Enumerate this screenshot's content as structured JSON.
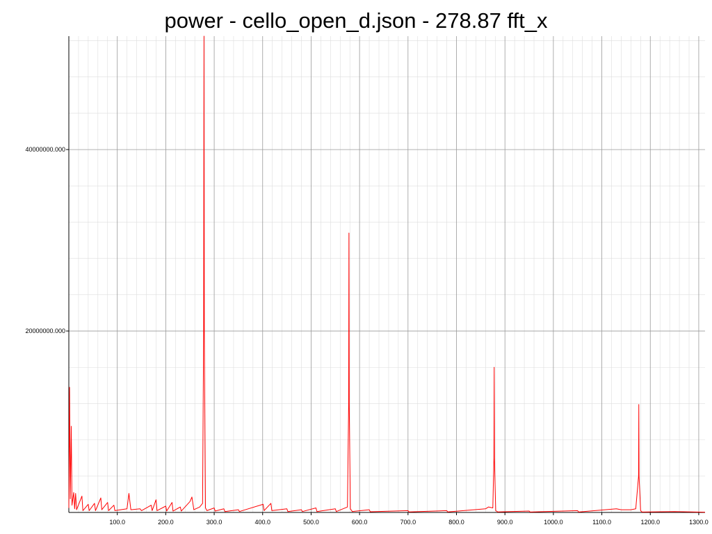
{
  "chart_data": {
    "type": "line",
    "title": "power - cello_open_d.json - 278.87 fft_x",
    "xlabel": "",
    "ylabel": "",
    "xlim": [
      0,
      1313
    ],
    "ylim": [
      0,
      52500000
    ],
    "grid": true,
    "colors": {
      "line": "#ff0000",
      "major_grid": "#9a9a9a",
      "minor_grid": "#dddddd",
      "axis": "#000000"
    },
    "x_ticks": [
      {
        "value": 100,
        "label": "100.0"
      },
      {
        "value": 200,
        "label": "200.0"
      },
      {
        "value": 300,
        "label": "300.0"
      },
      {
        "value": 400,
        "label": "400.0"
      },
      {
        "value": 500,
        "label": "500.0"
      },
      {
        "value": 600,
        "label": "600.0"
      },
      {
        "value": 700,
        "label": "700.0"
      },
      {
        "value": 800,
        "label": "800.0"
      },
      {
        "value": 900,
        "label": "900.0"
      },
      {
        "value": 1000,
        "label": "1000.0"
      },
      {
        "value": 1100,
        "label": "1100.0"
      },
      {
        "value": 1200,
        "label": "1200.0"
      },
      {
        "value": 1300,
        "label": "1300.0"
      }
    ],
    "y_ticks": [
      {
        "value": 20000000,
        "label": "20000000.000"
      },
      {
        "value": 40000000,
        "label": "40000000.000"
      }
    ],
    "series": [
      {
        "points": [
          [
            0,
            500000
          ],
          [
            1.5,
            13800000
          ],
          [
            3,
            1500000
          ],
          [
            5,
            9500000
          ],
          [
            6.5,
            800000
          ],
          [
            10,
            2200000
          ],
          [
            12,
            400000
          ],
          [
            14,
            2100000
          ],
          [
            16,
            300000
          ],
          [
            27,
            1800000
          ],
          [
            29,
            200000
          ],
          [
            40,
            900000
          ],
          [
            42,
            200000
          ],
          [
            53,
            1000000
          ],
          [
            55,
            200000
          ],
          [
            66,
            1600000
          ],
          [
            68,
            300000
          ],
          [
            80,
            1100000
          ],
          [
            82,
            200000
          ],
          [
            93,
            800000
          ],
          [
            95,
            200000
          ],
          [
            120,
            400000
          ],
          [
            124,
            2100000
          ],
          [
            128,
            300000
          ],
          [
            147,
            400000
          ],
          [
            150,
            200000
          ],
          [
            170,
            800000
          ],
          [
            172,
            200000
          ],
          [
            180,
            1400000
          ],
          [
            182,
            200000
          ],
          [
            200,
            700000
          ],
          [
            202,
            150000
          ],
          [
            213,
            1100000
          ],
          [
            215,
            150000
          ],
          [
            230,
            600000
          ],
          [
            232,
            150000
          ],
          [
            250,
            1200000
          ],
          [
            254,
            1700000
          ],
          [
            258,
            300000
          ],
          [
            270,
            600000
          ],
          [
            276,
            1000000
          ],
          [
            278.2,
            20000000
          ],
          [
            278.9,
            52500000
          ],
          [
            279.6,
            20000000
          ],
          [
            282,
            500000
          ],
          [
            285,
            200000
          ],
          [
            300,
            500000
          ],
          [
            302,
            150000
          ],
          [
            320,
            400000
          ],
          [
            322,
            100000
          ],
          [
            350,
            300000
          ],
          [
            352,
            100000
          ],
          [
            401,
            900000
          ],
          [
            403,
            200000
          ],
          [
            417,
            1000000
          ],
          [
            419,
            200000
          ],
          [
            450,
            400000
          ],
          [
            452,
            100000
          ],
          [
            480,
            300000
          ],
          [
            482,
            100000
          ],
          [
            510,
            500000
          ],
          [
            512,
            100000
          ],
          [
            550,
            400000
          ],
          [
            552,
            100000
          ],
          [
            575,
            600000
          ],
          [
            577.5,
            12000000
          ],
          [
            578.1,
            30800000
          ],
          [
            578.7,
            12000000
          ],
          [
            581,
            400000
          ],
          [
            585,
            100000
          ],
          [
            620,
            300000
          ],
          [
            622,
            80000
          ],
          [
            700,
            200000
          ],
          [
            702,
            60000
          ],
          [
            780,
            200000
          ],
          [
            782,
            60000
          ],
          [
            860,
            400000
          ],
          [
            866,
            600000
          ],
          [
            875,
            500000
          ],
          [
            877.3,
            6000000
          ],
          [
            877.8,
            16000000
          ],
          [
            878.3,
            6000000
          ],
          [
            881,
            200000
          ],
          [
            885,
            60000
          ],
          [
            950,
            150000
          ],
          [
            952,
            50000
          ],
          [
            1050,
            200000
          ],
          [
            1052,
            50000
          ],
          [
            1130,
            400000
          ],
          [
            1140,
            300000
          ],
          [
            1160,
            300000
          ],
          [
            1170,
            400000
          ],
          [
            1175.8,
            4000000
          ],
          [
            1176.3,
            11900000
          ],
          [
            1176.8,
            4000000
          ],
          [
            1180,
            200000
          ],
          [
            1183,
            50000
          ],
          [
            1250,
            100000
          ],
          [
            1313,
            30000
          ]
        ]
      }
    ]
  }
}
